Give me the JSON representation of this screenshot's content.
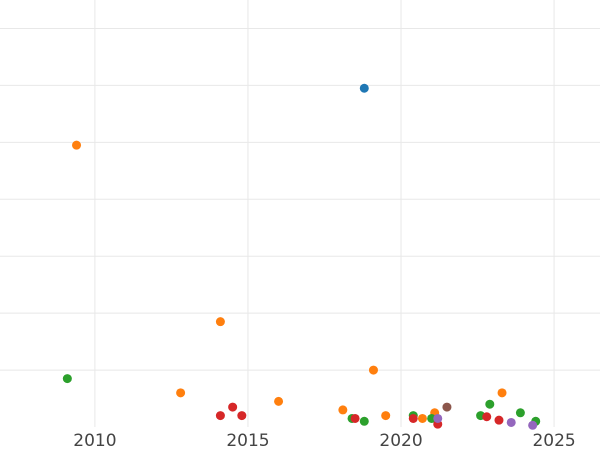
{
  "chart_data": {
    "type": "scatter",
    "title": "",
    "xlabel": "",
    "ylabel": "",
    "xlim": [
      2006.9,
      2026.5
    ],
    "ylim": [
      0,
      7.5
    ],
    "grid": true,
    "x_ticks": [
      {
        "value": 2010,
        "label": "2010"
      },
      {
        "value": 2015,
        "label": "2015"
      },
      {
        "value": 2020,
        "label": "2020"
      },
      {
        "value": 2025,
        "label": "2025"
      }
    ],
    "y_ticks": [
      1,
      2,
      3,
      4,
      5,
      6,
      7
    ],
    "series": [
      {
        "color": "#1f77b4",
        "points": [
          {
            "x": 2018.8,
            "y": 5.95
          }
        ]
      },
      {
        "color": "#ff7f0e",
        "points": [
          {
            "x": 2009.4,
            "y": 4.95
          },
          {
            "x": 2012.8,
            "y": 0.6
          },
          {
            "x": 2014.1,
            "y": 1.85
          },
          {
            "x": 2016.0,
            "y": 0.45
          },
          {
            "x": 2018.1,
            "y": 0.3
          },
          {
            "x": 2019.1,
            "y": 1.0
          },
          {
            "x": 2019.5,
            "y": 0.2
          },
          {
            "x": 2020.7,
            "y": 0.15
          },
          {
            "x": 2021.1,
            "y": 0.25
          },
          {
            "x": 2023.3,
            "y": 0.6
          }
        ]
      },
      {
        "color": "#2ca02c",
        "points": [
          {
            "x": 2009.1,
            "y": 0.85
          },
          {
            "x": 2018.4,
            "y": 0.15
          },
          {
            "x": 2018.8,
            "y": 0.1
          },
          {
            "x": 2020.4,
            "y": 0.2
          },
          {
            "x": 2021.0,
            "y": 0.15
          },
          {
            "x": 2022.6,
            "y": 0.2
          },
          {
            "x": 2022.9,
            "y": 0.4
          },
          {
            "x": 2023.9,
            "y": 0.25
          },
          {
            "x": 2024.4,
            "y": 0.1
          }
        ]
      },
      {
        "color": "#d62728",
        "points": [
          {
            "x": 2014.1,
            "y": 0.2
          },
          {
            "x": 2014.5,
            "y": 0.35
          },
          {
            "x": 2014.8,
            "y": 0.2
          },
          {
            "x": 2018.5,
            "y": 0.15
          },
          {
            "x": 2020.4,
            "y": 0.15
          },
          {
            "x": 2021.2,
            "y": 0.05
          },
          {
            "x": 2022.8,
            "y": 0.18
          },
          {
            "x": 2023.2,
            "y": 0.12
          }
        ]
      },
      {
        "color": "#9467bd",
        "points": [
          {
            "x": 2021.2,
            "y": 0.15
          },
          {
            "x": 2023.6,
            "y": 0.08
          },
          {
            "x": 2024.3,
            "y": 0.03
          }
        ]
      },
      {
        "color": "#8c564b",
        "points": [
          {
            "x": 2021.5,
            "y": 0.35
          }
        ]
      }
    ]
  }
}
